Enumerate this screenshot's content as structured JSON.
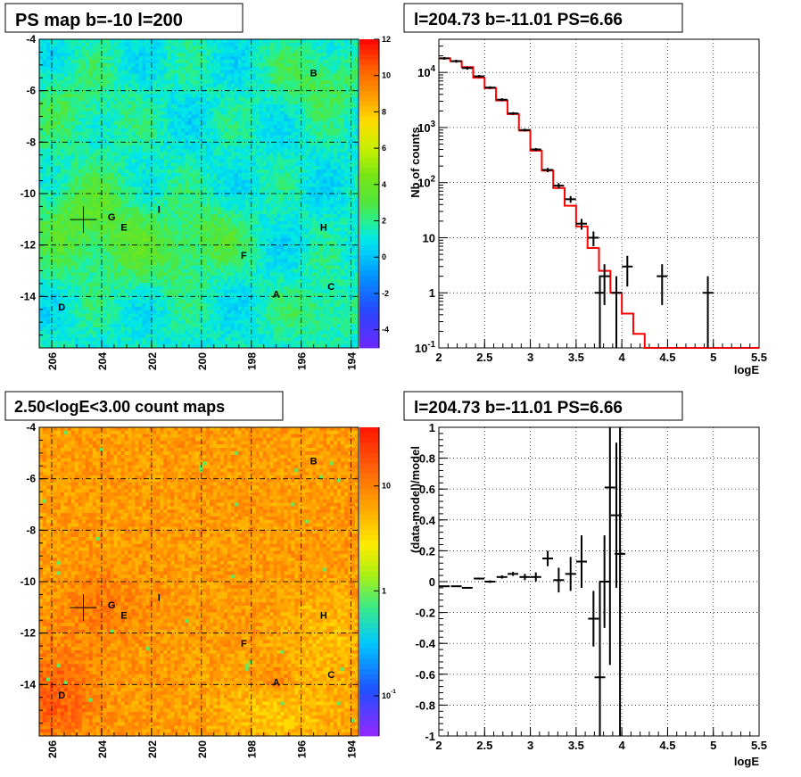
{
  "panels": [
    {
      "title": "PS map b=-10 l=200"
    },
    {
      "title": "l=204.73 b=-11.01 PS=6.66"
    },
    {
      "title": "2.50<logE<3.00 count maps"
    },
    {
      "title": "l=204.73 b=-11.01 PS=6.66"
    }
  ],
  "chart_data": [
    {
      "type": "heatmap",
      "title": "PS map b=-10 l=200",
      "x_ticks": [
        "206",
        "204",
        "202",
        "200",
        "198",
        "196",
        "194"
      ],
      "y_ticks": [
        "-4",
        "-6",
        "-8",
        "-10",
        "-12",
        "-14"
      ],
      "xlim": [
        206.5,
        193.7
      ],
      "ylim": [
        -16,
        -4
      ],
      "grid": true,
      "palette": "PS",
      "colorbar_ticks": [
        "12",
        "10",
        "8",
        "6",
        "4",
        "2",
        "0",
        "-2",
        "-4"
      ],
      "colorbar_range": [
        -5,
        12
      ],
      "sources": [
        {
          "label": "B",
          "l": 195.5,
          "b": -5.3
        },
        {
          "label": "G",
          "l": 203.6,
          "b": -10.9
        },
        {
          "label": "E",
          "l": 203.1,
          "b": -11.3
        },
        {
          "label": "I",
          "l": 201.7,
          "b": -10.6
        },
        {
          "label": "H",
          "l": 195.1,
          "b": -11.3
        },
        {
          "label": "F",
          "l": 198.3,
          "b": -12.4
        },
        {
          "label": "C",
          "l": 194.8,
          "b": -13.6
        },
        {
          "label": "A",
          "l": 197.0,
          "b": -13.9
        },
        {
          "label": "D",
          "l": 205.6,
          "b": -14.4
        }
      ],
      "marker": {
        "l": 204.73,
        "b": -11.01
      }
    },
    {
      "type": "line",
      "title": "l=204.73 b=-11.01 PS=6.66",
      "xlabel": "logE",
      "ylabel": "Nb of counts",
      "xlim": [
        2,
        5.5
      ],
      "ylim": [
        0.1,
        40000
      ],
      "yscale": "log",
      "grid": true,
      "x_ticks": [
        "2",
        "2.5",
        "3",
        "3.5",
        "4",
        "4.5",
        "5",
        "5.5"
      ],
      "y_ticks": [
        {
          "label": "10",
          "sup": "-1",
          "v": 0.1
        },
        {
          "label": "1",
          "sup": "",
          "v": 1
        },
        {
          "label": "10",
          "sup": "",
          "v": 10
        },
        {
          "label": "10",
          "sup": "2",
          "v": 100
        },
        {
          "label": "10",
          "sup": "3",
          "v": 1000
        },
        {
          "label": "10",
          "sup": "4",
          "v": 10000
        }
      ],
      "model": {
        "bin_width": 0.125,
        "bin_starts": [
          2.0,
          2.125,
          2.25,
          2.375,
          2.5,
          2.625,
          2.75,
          2.875,
          3.0,
          3.125,
          3.25,
          3.375,
          3.5,
          3.625,
          3.75,
          3.875,
          4.0,
          4.125,
          4.25,
          4.375,
          4.5,
          4.625,
          4.75,
          4.875,
          5.0,
          5.125,
          5.25,
          5.375
        ],
        "values": [
          18000,
          16000,
          12500,
          8000,
          5200,
          3100,
          1750,
          880,
          380,
          165,
          80,
          38,
          16,
          6.5,
          2.5,
          1.0,
          0.42,
          0.18,
          0.1,
          0.1,
          0.1,
          0.1,
          0.1,
          0.1,
          0.1,
          0.1,
          0.1,
          0.1
        ]
      },
      "data": [
        {
          "x": 2.06,
          "y": 18000,
          "ylo": 17000,
          "yhi": 19000
        },
        {
          "x": 2.19,
          "y": 16000,
          "ylo": 15000,
          "yhi": 17000
        },
        {
          "x": 2.31,
          "y": 12000,
          "ylo": 11200,
          "yhi": 12800
        },
        {
          "x": 2.44,
          "y": 8500,
          "ylo": 8000,
          "yhi": 9000
        },
        {
          "x": 2.56,
          "y": 5300,
          "ylo": 5000,
          "yhi": 5600
        },
        {
          "x": 2.69,
          "y": 3200,
          "ylo": 3000,
          "yhi": 3400
        },
        {
          "x": 2.81,
          "y": 1800,
          "ylo": 1700,
          "yhi": 1900
        },
        {
          "x": 2.94,
          "y": 900,
          "ylo": 850,
          "yhi": 950
        },
        {
          "x": 3.06,
          "y": 400,
          "ylo": 375,
          "yhi": 425
        },
        {
          "x": 3.19,
          "y": 170,
          "ylo": 155,
          "yhi": 185
        },
        {
          "x": 3.31,
          "y": 88,
          "ylo": 78,
          "yhi": 98
        },
        {
          "x": 3.44,
          "y": 50,
          "ylo": 43,
          "yhi": 57
        },
        {
          "x": 3.56,
          "y": 18,
          "ylo": 14,
          "yhi": 22
        },
        {
          "x": 3.69,
          "y": 10,
          "ylo": 7,
          "yhi": 13
        },
        {
          "x": 3.76,
          "y": 1,
          "ylo": 0.1,
          "yhi": 2
        },
        {
          "x": 3.81,
          "y": 2,
          "ylo": 0.6,
          "yhi": 3.3
        },
        {
          "x": 3.94,
          "y": 1,
          "ylo": 0.1,
          "yhi": 2
        },
        {
          "x": 4.06,
          "y": 3,
          "ylo": 1.3,
          "yhi": 4.7
        },
        {
          "x": 4.44,
          "y": 2,
          "ylo": 0.6,
          "yhi": 3.3
        },
        {
          "x": 4.94,
          "y": 1,
          "ylo": 0.1,
          "yhi": 2
        }
      ]
    },
    {
      "type": "heatmap",
      "title": "2.50<logE<3.00 count maps",
      "x_ticks": [
        "206",
        "204",
        "202",
        "200",
        "198",
        "196",
        "194"
      ],
      "y_ticks": [
        "-4",
        "-6",
        "-8",
        "-10",
        "-12",
        "-14"
      ],
      "xlim": [
        206.5,
        193.7
      ],
      "ylim": [
        -16,
        -4
      ],
      "grid": true,
      "palette": "counts",
      "colorbar_ticks": [
        {
          "label": "10",
          "sup": ""
        },
        {
          "label": "1",
          "sup": ""
        },
        {
          "label": "10",
          "sup": "-1"
        }
      ],
      "sources": [
        {
          "label": "B",
          "l": 195.5,
          "b": -5.3
        },
        {
          "label": "G",
          "l": 203.6,
          "b": -10.9
        },
        {
          "label": "E",
          "l": 203.1,
          "b": -11.3
        },
        {
          "label": "I",
          "l": 201.7,
          "b": -10.6
        },
        {
          "label": "H",
          "l": 195.1,
          "b": -11.3
        },
        {
          "label": "F",
          "l": 198.3,
          "b": -12.4
        },
        {
          "label": "C",
          "l": 194.8,
          "b": -13.6
        },
        {
          "label": "A",
          "l": 197.0,
          "b": -13.9
        },
        {
          "label": "D",
          "l": 205.6,
          "b": -14.4
        }
      ],
      "marker": {
        "l": 204.73,
        "b": -11.01
      }
    },
    {
      "type": "scatter",
      "title": "l=204.73 b=-11.01 PS=6.66",
      "xlabel": "logE",
      "ylabel": "(data-model)/model",
      "xlim": [
        2,
        5.5
      ],
      "ylim": [
        -1,
        1
      ],
      "grid": true,
      "x_ticks": [
        "2",
        "2.5",
        "3",
        "3.5",
        "4",
        "4.5",
        "5",
        "5.5"
      ],
      "y_ticks": [
        "-1",
        "-0.8",
        "-0.6",
        "-0.4",
        "-0.2",
        "0",
        "0.2",
        "0.4",
        "0.6",
        "0.8",
        "1"
      ],
      "data": [
        {
          "x": 2.06,
          "y": -0.03,
          "err": 0.004
        },
        {
          "x": 2.19,
          "y": -0.03,
          "err": 0.004
        },
        {
          "x": 2.31,
          "y": -0.04,
          "err": 0.005
        },
        {
          "x": 2.44,
          "y": 0.02,
          "err": 0.006
        },
        {
          "x": 2.56,
          "y": 0.0,
          "err": 0.008
        },
        {
          "x": 2.69,
          "y": 0.03,
          "err": 0.01
        },
        {
          "x": 2.81,
          "y": 0.05,
          "err": 0.013
        },
        {
          "x": 2.94,
          "y": 0.03,
          "err": 0.02
        },
        {
          "x": 3.06,
          "y": 0.03,
          "err": 0.03
        },
        {
          "x": 3.19,
          "y": 0.15,
          "err": 0.05
        },
        {
          "x": 3.31,
          "y": 0.01,
          "err": 0.08
        },
        {
          "x": 3.44,
          "y": 0.05,
          "err": 0.11
        },
        {
          "x": 3.56,
          "y": 0.13,
          "err": 0.17
        },
        {
          "x": 3.69,
          "y": -0.24,
          "err": 0.18
        },
        {
          "x": 3.81,
          "y": 0.0,
          "err": 0.3
        },
        {
          "x": 3.94,
          "y": 0.43,
          "err": 0.47
        },
        {
          "x": 3.76,
          "y": -0.62,
          "err": 0.62
        },
        {
          "x": 3.87,
          "y": 0.61,
          "err": 1.15
        },
        {
          "x": 3.98,
          "y": 0.18,
          "err": 1.4
        }
      ]
    }
  ]
}
